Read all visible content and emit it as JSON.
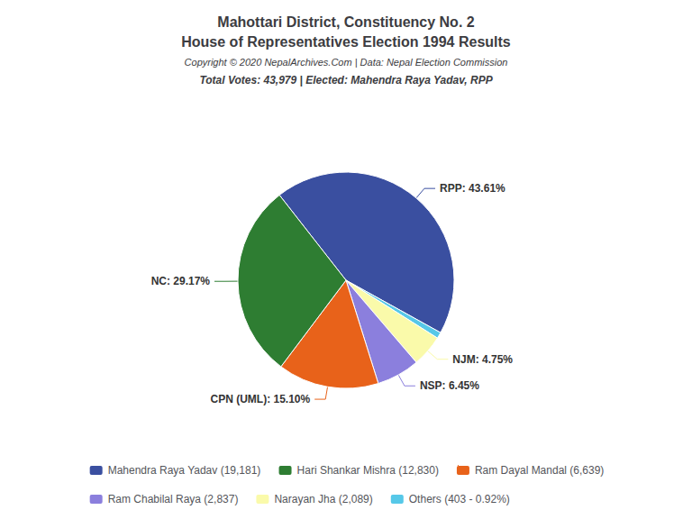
{
  "chart_data": {
    "type": "pie",
    "title": "Mahottari District, Constituency No. 2\nHouse of Representatives Election 1994 Results",
    "annotations": [
      "Copyright © 2020 NepalArchives.Com | Data: Nepal Election Commission"
    ],
    "subtitle": "Total Votes: 43,979 | Elected: Mahendra Raya Yadav, RPP",
    "categories": [
      "Mahendra Raya Yadav (19,181)",
      "Others (403 - 0.92%)",
      "Narayan Jha (2,089)",
      "Ram Chabilal Raya (2,837)",
      "Ram Dayal Mandal (6,639)",
      "Hari Shankar Mishra (12,830)"
    ],
    "values": [
      43.61,
      0.92,
      4.75,
      6.45,
      15.1,
      29.17
    ],
    "value_labels": [
      "RPP: 43.61%",
      null,
      "NJM: 4.75%",
      "NSP: 6.45%",
      "CPN (UML): 15.10%",
      "NC: 29.17%"
    ],
    "colors": [
      "#3A4FA0",
      "#56C8E8",
      "#FAFAAA",
      "#8B7FDD",
      "#E8621A",
      "#2E7D32"
    ],
    "data_labels": true,
    "legend": "bottom",
    "legend_order": [
      "Mahendra Raya Yadav (19,181)",
      "Hari Shankar Mishra (12,830)",
      "Ram Dayal Mandal (6,639)",
      "Ram Chabilal Raya (2,837)",
      "Narayan Jha (2,089)",
      "Others (403 - 0.92%)"
    ]
  }
}
